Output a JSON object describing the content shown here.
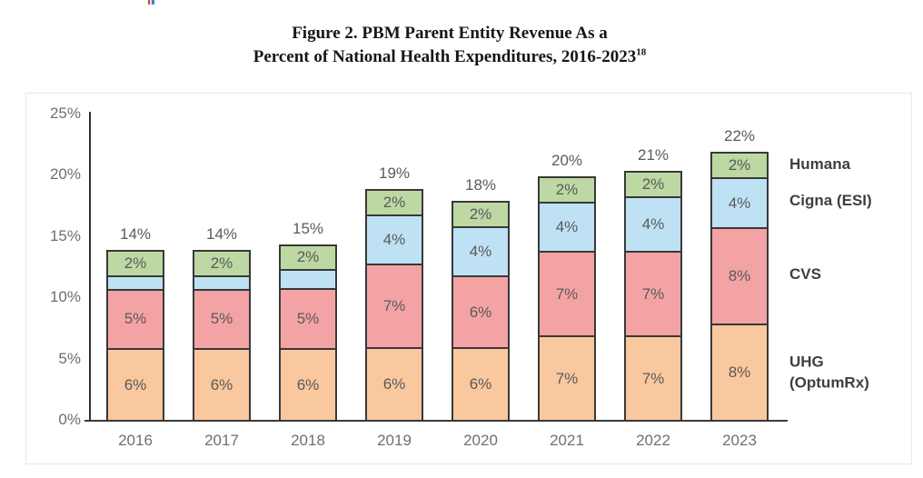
{
  "figure": {
    "title_line1": "Figure 2. PBM Parent Entity Revenue As a",
    "title_line2": "Percent of National Health Expenditures, 2016-2023",
    "footnote_marker": "18"
  },
  "chart_data": {
    "type": "bar",
    "stacked": true,
    "title": "Figure 2. PBM Parent Entity Revenue As a Percent of National Health Expenditures, 2016-2023",
    "xlabel": "",
    "ylabel": "",
    "ylim": [
      0,
      25
    ],
    "gridlines": false,
    "legend_position": "right",
    "categories": [
      "2016",
      "2017",
      "2018",
      "2019",
      "2020",
      "2021",
      "2022",
      "2023"
    ],
    "series": [
      {
        "name": "UHG (OptumRx)",
        "color": "#F9C89F",
        "values": [
          6,
          6,
          6,
          6,
          6,
          7,
          7,
          8
        ],
        "labels": [
          "6%",
          "6%",
          "6%",
          "6%",
          "6%",
          "7%",
          "7%",
          "8%"
        ]
      },
      {
        "name": "CVS",
        "color": "#F4A3A5",
        "values": [
          5,
          5,
          5,
          7,
          6,
          7,
          7,
          8
        ],
        "labels": [
          "5%",
          "5%",
          "5%",
          "7%",
          "6%",
          "7%",
          "7%",
          "8%"
        ]
      },
      {
        "name": "Cigna (ESI)",
        "color": "#BFE1F4",
        "values": [
          1,
          1,
          1.5,
          4,
          4,
          4,
          4.5,
          4
        ],
        "labels": [
          "",
          "",
          "",
          "4%",
          "4%",
          "4%",
          "4%",
          "4%"
        ]
      },
      {
        "name": "Humana",
        "color": "#BDD8A3",
        "values": [
          2,
          2,
          2,
          2,
          2,
          2,
          2,
          2
        ],
        "labels": [
          "2%",
          "2%",
          "2%",
          "2%",
          "2%",
          "2%",
          "2%",
          "2%"
        ]
      }
    ],
    "totals": [
      "14%",
      "14%",
      "15%",
      "19%",
      "18%",
      "20%",
      "21%",
      "22%"
    ],
    "y_axis_ticks": [
      {
        "label": "0%",
        "value": 0
      },
      {
        "label": "5%",
        "value": 5
      },
      {
        "label": "10%",
        "value": 10
      },
      {
        "label": "15%",
        "value": 15
      },
      {
        "label": "20%",
        "value": 20
      },
      {
        "label": "25%",
        "value": 25
      }
    ],
    "legend": [
      {
        "series": "Humana",
        "lines": [
          "Humana"
        ]
      },
      {
        "series": "Cigna (ESI)",
        "lines": [
          "Cigna (ESI)"
        ]
      },
      {
        "series": "CVS",
        "lines": [
          "CVS"
        ]
      },
      {
        "series": "UHG (OptumRx)",
        "lines": [
          "UHG",
          "(OptumRx)"
        ]
      }
    ]
  }
}
